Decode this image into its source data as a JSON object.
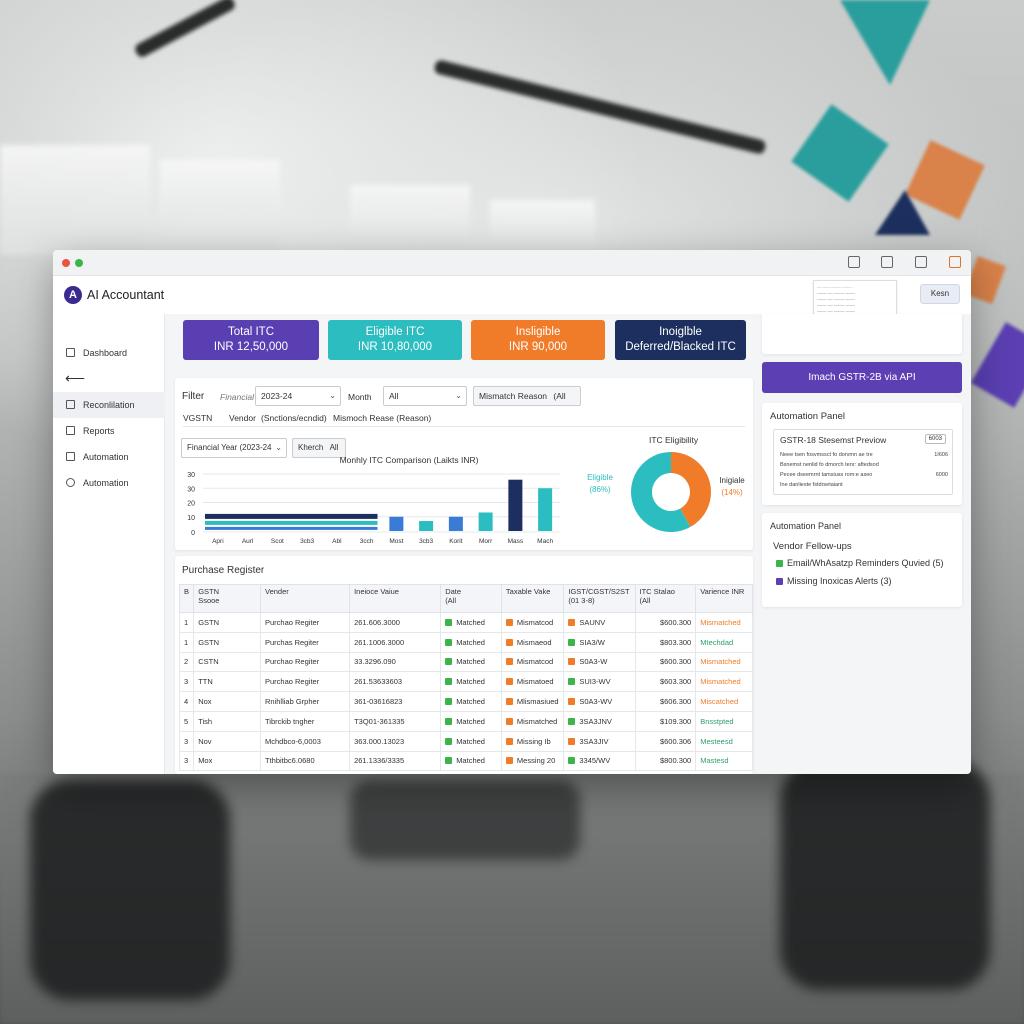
{
  "app": {
    "title": "AI Accountant",
    "logo_letter": "A",
    "reset_label": "Kesn"
  },
  "mini_preview": {
    "lines": [
      "................................",
      "------- ---- -------- -------",
      "------- ---- -------- -------",
      "------- ---- -------- -------",
      "------- ---- -------- -------",
      "------- ---- -------- -------",
      "------- ---- -------- -------"
    ]
  },
  "sidebar": {
    "items": [
      {
        "label": "Dashboard",
        "icon": "home-icon"
      },
      {
        "label": "Reconlilation",
        "icon": "ledger-icon"
      },
      {
        "label": "Reports",
        "icon": "report-icon"
      },
      {
        "label": "Automation",
        "icon": "automation-icon"
      },
      {
        "label": "Automation",
        "icon": "automation-icon"
      }
    ],
    "back_symbol": "⟵"
  },
  "summary_cards": [
    {
      "title": "Total ITC",
      "value": "INR 12,50,000",
      "color": "#5a3fb3"
    },
    {
      "title": "Eligible ITC",
      "value": "INR 10,80,000",
      "color": "#2bbdc0"
    },
    {
      "title": "Insligible",
      "value": "INR 90,000",
      "color": "#f07c2a"
    },
    {
      "title": "Inoiglble",
      "value": "Deferred/Blacked ITC",
      "color": "#1d2f5e"
    }
  ],
  "filter": {
    "title": "Filter",
    "fy_placeholder": "Financial",
    "fy_value": "2023-24",
    "month_label": "Month",
    "month_value": "All",
    "mismatch_label": "Mismatch Reason",
    "mismatch_value": "(All",
    "row2_vgstin": "VGSTN",
    "row2_vendor": "Vendor",
    "row2_vendor_value": "(Snctions/ecndid)",
    "row2_mismatch": "Mismoch Rease (Reason)"
  },
  "chart_controls": {
    "fy_value": "Financial Year (2023-24",
    "month_label": "Kherch",
    "month_value": "All"
  },
  "chart_data": [
    {
      "type": "bar",
      "title": "Monhly ITC Comparison (Laikts INR)",
      "categories": [
        "Apri",
        "Aurl",
        "Scot",
        "3cb3",
        "Abl",
        "3cch",
        "Most",
        "3cb3",
        "Korit",
        "Morr",
        "Mass",
        "Mach"
      ],
      "yticks": [
        "0",
        "10",
        "20",
        "30",
        "30"
      ],
      "series": [
        {
          "values": [
            12,
            12,
            12,
            12,
            12,
            12,
            10,
            7,
            10,
            13,
            36,
            30
          ]
        }
      ],
      "colors": [
        "#1d2f5e",
        "#3a7bd5",
        "#2bbdc0",
        "#3a7bd5",
        "#2bbdc0",
        "#1d2f5e",
        "#2bbdc0"
      ],
      "ylim": [
        0,
        40
      ]
    },
    {
      "type": "pie",
      "title": "ITC Eligibility",
      "slices": [
        {
          "label": "Eligible",
          "pct_label": "(86%)",
          "value": 86,
          "color": "#2bbdc0"
        },
        {
          "label": "Inigiale",
          "pct_label": "(14%)",
          "value": 14,
          "color": "#f07c2a"
        }
      ]
    }
  ],
  "register": {
    "title": "Purchase Register",
    "headers": [
      "B",
      "GSTN\nSsooe",
      "Vender",
      "Ineioce Vaiue",
      "Date\n(All",
      "Taxable Vake",
      "IGST/CGST/S2ST\n(01 3-8)",
      "ITC Stalao\n(All",
      "Varience INR"
    ],
    "rows": [
      [
        "1",
        "GSTN",
        "Purchao Regiter",
        "261.606.3000",
        "Matched",
        "Mismatcod",
        "SAUNV",
        "$600.300",
        "Mismatched"
      ],
      [
        "1",
        "GSTN",
        "Purchas Regiter",
        "261.1006.3000",
        "Matched",
        "Mismaeod",
        "SIA3/W",
        "$803.300",
        "Mtechdad"
      ],
      [
        "2",
        "CSTN",
        "Purchao Regiter",
        "33.3296.090",
        "Matched",
        "Mismatcod",
        "S0A3-W",
        "$600.300",
        "Mismatched"
      ],
      [
        "3",
        "TTN",
        "Purchao Regiter",
        "261.53633603",
        "Matched",
        "Mismatoed",
        "SUI3-WV",
        "$603.300",
        "Mismatched"
      ],
      [
        "4",
        "Nox",
        "Rnihlliab Grpher",
        "361-03616823",
        "Matched",
        "Mlismasiued",
        "S0A3-WV",
        "$606.300",
        "Miscatched"
      ],
      [
        "5",
        "Tish",
        "Tibrckib tngher",
        "T3Q01-361335",
        "Matched",
        "Mismatched",
        "3SA3JNV",
        "$109.300",
        "Bnsstpted"
      ],
      [
        "3",
        "Nov",
        "Mchdbco-6,0003",
        "363.000.13023",
        "Matched",
        "Missing Ib",
        "3SA3JIV",
        "$600.306",
        "Mesteesd"
      ],
      [
        "3",
        "Mox",
        "Tthbitbc6.0680",
        "261.1336/3335",
        "Matched",
        "Messing 20",
        "3345/WV",
        "$800.300",
        "Mastesd"
      ]
    ],
    "status_colors": [
      "orange",
      "green",
      "orange",
      "orange",
      "orange",
      "green",
      "green",
      "green"
    ]
  },
  "right_panel": {
    "import_button": "Imach GSTR-2B via API",
    "automation_title": "Automation Panel",
    "gstr_title": "GSTR-18 Stesemst Previow",
    "gstr_badge": "6003",
    "gstr_lines": [
      {
        "text": "Neee tsen fosvmssct fo dorvmn ae tre",
        "val": "1I606"
      },
      {
        "text": "Bsnemst nenlid fo dmorch tenr: aftedsod",
        "val": ""
      },
      {
        "text": "Pecee dseemrnt tamsiuss rom:e aseo",
        "val": "6000"
      },
      {
        "text": "Ine danlieste fstdrsetaiant",
        "val": ""
      }
    ],
    "automation_title2": "Automation Panel",
    "vendor_title": "Vendor Fellow-ups",
    "vendor_items": [
      {
        "text": "Email/WhAsatzp Reminders Quvied (5)",
        "color": "#3bb54a"
      },
      {
        "text": "Missing Inoxicas Alerts (3)",
        "color": "#5b3fb3"
      }
    ]
  }
}
